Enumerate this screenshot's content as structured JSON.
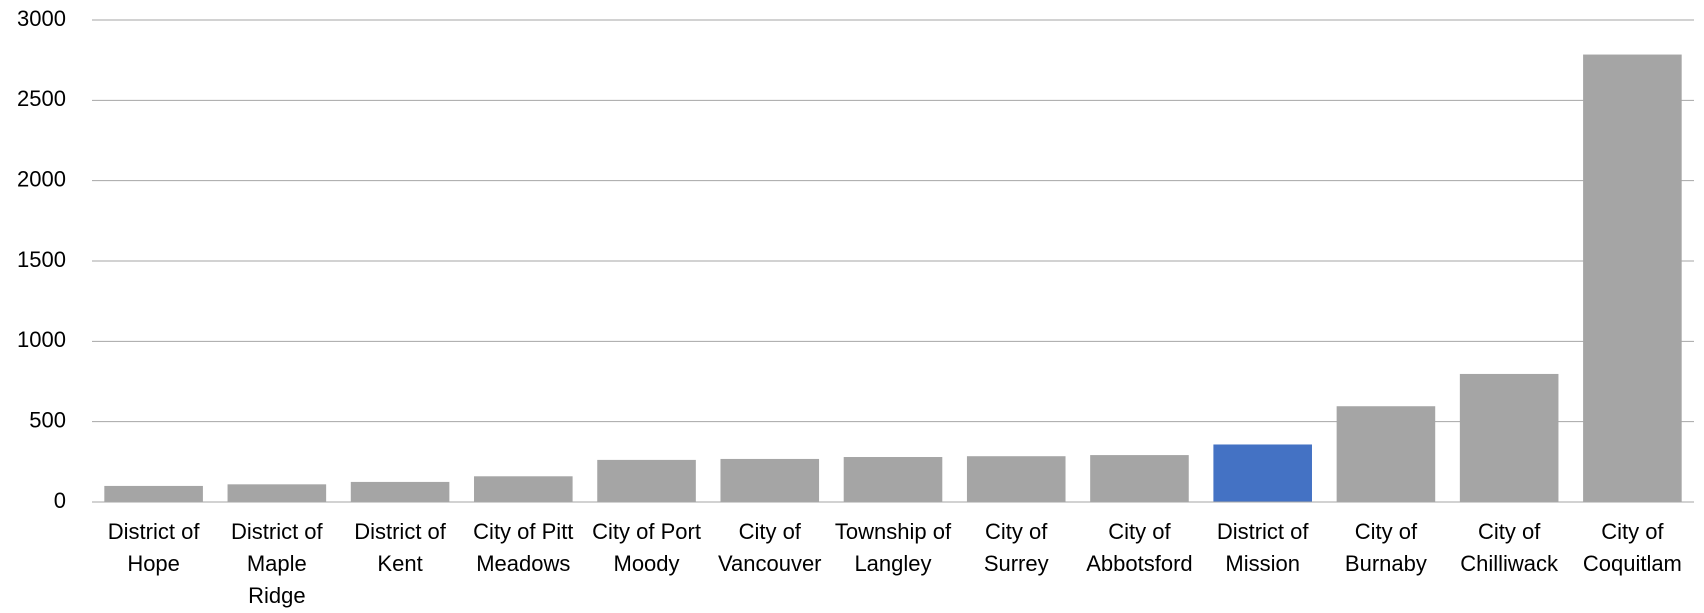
{
  "chart_data": {
    "type": "bar",
    "categories": [
      "District of Hope",
      "District of Maple Ridge",
      "District of Kent",
      "City of Pitt Meadows",
      "City of Port Moody",
      "City of Vancouver",
      "Township of Langley",
      "City of Surrey",
      "City of Abbotsford",
      "District of Mission",
      "City of Burnaby",
      "City of Chilliwack",
      "City of Coquitlam"
    ],
    "values": [
      100,
      110,
      125,
      160,
      262,
      268,
      280,
      285,
      292,
      358,
      596,
      797,
      2785
    ],
    "colors": [
      "#a5a5a5",
      "#a5a5a5",
      "#a5a5a5",
      "#a5a5a5",
      "#a5a5a5",
      "#a5a5a5",
      "#a5a5a5",
      "#a5a5a5",
      "#a5a5a5",
      "#4472c4",
      "#a5a5a5",
      "#a5a5a5",
      "#a5a5a5"
    ],
    "ylim": [
      0,
      3000
    ],
    "yticks": [
      0,
      500,
      1000,
      1500,
      2000,
      2500,
      3000
    ],
    "grid": true
  }
}
